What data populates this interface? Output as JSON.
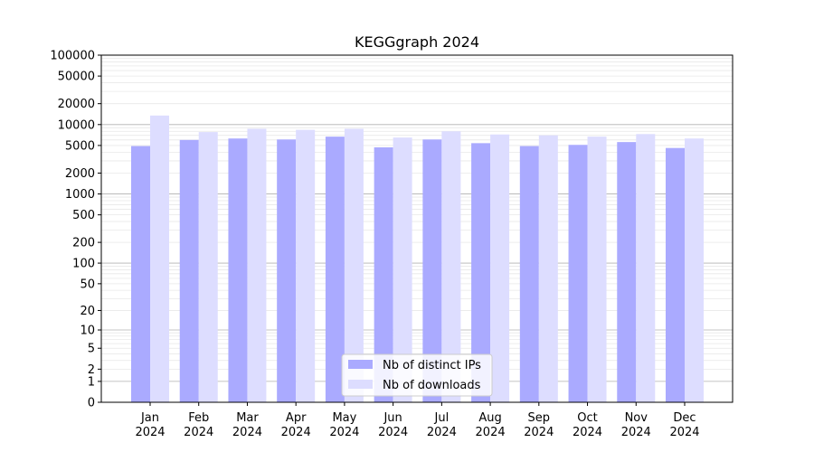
{
  "chart_data": {
    "type": "bar",
    "title": "KEGGgraph 2024",
    "xlabel": "",
    "ylabel": "",
    "yscale": "symlog",
    "ylim": [
      0,
      100000
    ],
    "yticks": [
      0,
      1,
      2,
      5,
      10,
      20,
      50,
      100,
      200,
      500,
      1000,
      2000,
      5000,
      10000,
      20000,
      50000,
      100000
    ],
    "ytick_labels": [
      "0",
      "1",
      "2",
      "5",
      "10",
      "20",
      "50",
      "100",
      "200",
      "500",
      "1000",
      "2000",
      "5000",
      "10000",
      "20000",
      "50000",
      "100000"
    ],
    "grid": true,
    "legend_position": "bottom-center",
    "categories": [
      {
        "month": "Jan",
        "year": "2024"
      },
      {
        "month": "Feb",
        "year": "2024"
      },
      {
        "month": "Mar",
        "year": "2024"
      },
      {
        "month": "Apr",
        "year": "2024"
      },
      {
        "month": "May",
        "year": "2024"
      },
      {
        "month": "Jun",
        "year": "2024"
      },
      {
        "month": "Jul",
        "year": "2024"
      },
      {
        "month": "Aug",
        "year": "2024"
      },
      {
        "month": "Sep",
        "year": "2024"
      },
      {
        "month": "Oct",
        "year": "2024"
      },
      {
        "month": "Nov",
        "year": "2024"
      },
      {
        "month": "Dec",
        "year": "2024"
      }
    ],
    "series": [
      {
        "name": "Nb of distinct IPs",
        "color": "#aaaaff",
        "values": [
          4900,
          6000,
          6300,
          6100,
          6700,
          4700,
          6100,
          5400,
          4900,
          5100,
          5600,
          4600
        ]
      },
      {
        "name": "Nb of downloads",
        "color": "#ddddff",
        "values": [
          13500,
          7800,
          8700,
          8400,
          8700,
          6500,
          8000,
          7200,
          7000,
          6700,
          7300,
          6300
        ]
      }
    ]
  }
}
